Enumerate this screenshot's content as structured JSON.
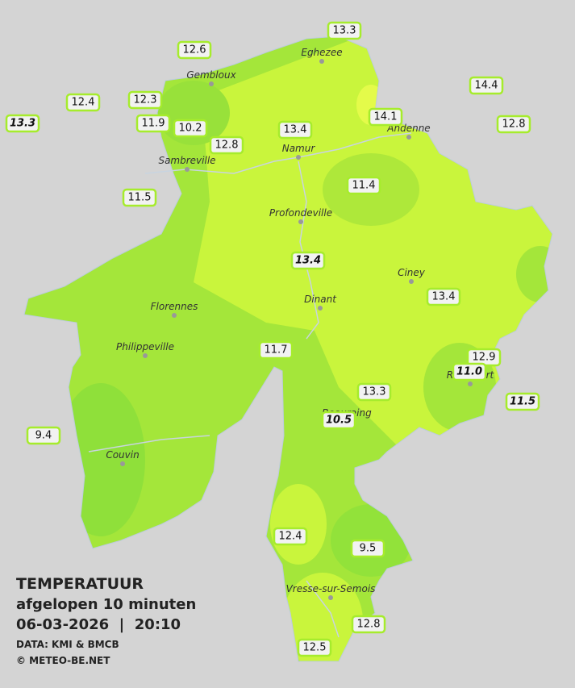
{
  "legend": {
    "title": "TEMPERATUUR",
    "subtitle": "afgelopen 10 minuten",
    "datetime": "06-03-2026  |  20:10",
    "source": "DATA: KMI & BMCB",
    "credit": "© METEO-BE.NET"
  },
  "cities": [
    "Eghezee",
    "Gembloux",
    "Andenne",
    "Namur",
    "Sambreville",
    "Profondeville",
    "Ciney",
    "Dinant",
    "Florennes",
    "Philippeville",
    "Beauraing",
    "Rochefort",
    "Couvin",
    "Vresse-sur-Semois"
  ],
  "stations": [
    "13.3",
    "12.6",
    "14.4",
    "12.4",
    "12.3",
    "13.3",
    "11.9",
    "10.2",
    "14.1",
    "12.8",
    "13.4",
    "12.8",
    "11.4",
    "11.5",
    "13.4",
    "13.4",
    "11.7",
    "12.9",
    "11.0",
    "13.3",
    "11.5",
    "10.5",
    "9.4",
    "12.4",
    "9.5",
    "12.8",
    "12.5"
  ]
}
